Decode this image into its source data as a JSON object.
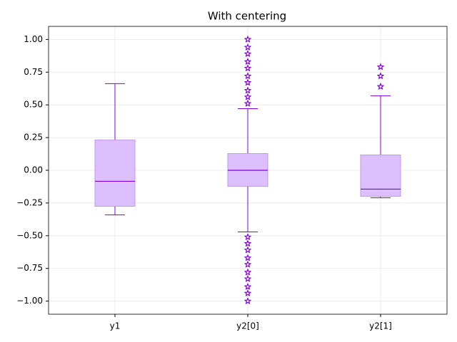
{
  "chart_data": {
    "type": "box",
    "title": "With centering",
    "categories": [
      "y1",
      "y2[0]",
      "y2[1]"
    ],
    "boxes": [
      {
        "whislo": -0.341,
        "q1": -0.275,
        "med": -0.084,
        "q3": 0.232,
        "whishi": 0.662,
        "fliers": []
      },
      {
        "whislo": -0.471,
        "q1": -0.123,
        "med": 0.0,
        "q3": 0.128,
        "whishi": 0.471,
        "fliers": [
          0.51,
          0.56,
          0.61,
          0.67,
          0.72,
          0.78,
          0.83,
          0.89,
          0.94,
          1.0,
          -0.51,
          -0.56,
          -0.61,
          -0.67,
          -0.72,
          -0.78,
          -0.83,
          -0.89,
          -0.94,
          -1.0
        ]
      },
      {
        "whislo": -0.21,
        "q1": -0.199,
        "med": -0.144,
        "q3": 0.117,
        "whishi": 0.57,
        "fliers": [
          0.64,
          0.72,
          0.79
        ]
      }
    ],
    "box_fill": "#d9b8ff",
    "box_edge": "#c09ae8",
    "line_color": "#8000e0",
    "ylim": [
      -1.1,
      1.1
    ],
    "yticks": [
      {
        "value": -1.0,
        "label": "−1.00"
      },
      {
        "value": -0.75,
        "label": "−0.75"
      },
      {
        "value": -0.5,
        "label": "−0.50"
      },
      {
        "value": -0.25,
        "label": "−0.25"
      },
      {
        "value": 0.0,
        "label": "0.00"
      },
      {
        "value": 0.25,
        "label": "0.25"
      },
      {
        "value": 0.5,
        "label": "0.50"
      },
      {
        "value": 0.75,
        "label": "0.75"
      },
      {
        "value": 1.0,
        "label": "1.00"
      }
    ],
    "grid": true
  }
}
